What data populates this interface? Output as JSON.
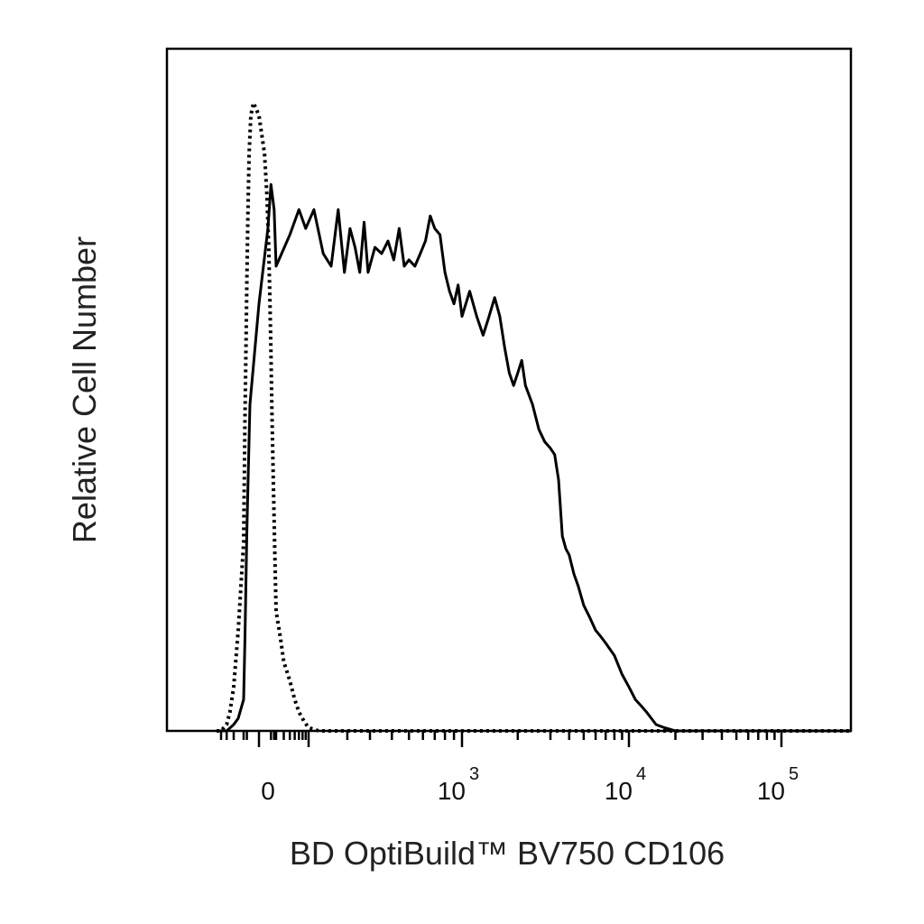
{
  "chart_data": {
    "type": "line",
    "xlabel": "BD OptiBuild™ BV750 CD106",
    "ylabel": "Relative Cell Number",
    "x_scale": "biexponential",
    "xlim": [
      -60,
      200000
    ],
    "ylim": [
      0,
      100
    ],
    "grid": false,
    "legend": "none",
    "x_tick_labels": [
      {
        "value": 0,
        "base": "0",
        "exponent": ""
      },
      {
        "value": 1000,
        "base": "10",
        "exponent": "3"
      },
      {
        "value": 10000,
        "base": "10",
        "exponent": "4"
      },
      {
        "value": 100000,
        "base": "10",
        "exponent": "5"
      }
    ],
    "colors": {
      "line": "#000000",
      "frame": "#000000",
      "text": "#222222"
    },
    "series": [
      {
        "style": "solid",
        "x": [
          -60,
          -40,
          -30,
          -25,
          -20,
          -15,
          -10,
          -5,
          0,
          5,
          10,
          20,
          30,
          50,
          70,
          90,
          110,
          130,
          150,
          170,
          190,
          210,
          230,
          250,
          270,
          290,
          320,
          350,
          380,
          410,
          440,
          470,
          500,
          540,
          580,
          620,
          660,
          700,
          750,
          800,
          850,
          900,
          950,
          1000,
          1100,
          1200,
          1300,
          1400,
          1500,
          1600,
          1700,
          1800,
          1900,
          2000,
          2100,
          2200,
          2400,
          2600,
          2800,
          3000,
          3200,
          3400,
          3600,
          3800,
          4000,
          4300,
          4600,
          5000,
          5500,
          6000,
          6500,
          7000,
          8000,
          9000,
          10000,
          11000,
          12000,
          13000,
          15000,
          17000,
          20000,
          23000,
          27000,
          32000,
          40000,
          55000,
          80000,
          120000,
          200000
        ],
        "y": [
          0,
          0,
          1,
          2,
          5,
          15,
          32,
          52,
          68,
          80,
          87,
          83,
          74,
          79,
          83,
          80,
          83,
          76,
          74,
          83,
          73,
          80,
          77,
          73,
          81,
          73,
          77,
          76,
          78,
          75,
          80,
          74,
          75,
          74,
          76,
          78,
          82,
          80,
          79,
          73,
          70,
          68,
          71,
          66,
          70,
          66,
          63,
          66,
          69,
          66,
          61,
          57,
          55,
          57,
          59,
          55,
          52,
          48,
          46,
          45,
          44,
          40,
          31,
          29,
          28,
          25,
          23,
          20,
          18,
          16,
          15,
          14,
          12,
          9,
          7,
          5,
          4,
          3,
          1,
          0.5,
          0,
          0,
          0,
          0,
          0,
          0,
          0,
          0,
          0
        ]
      },
      {
        "style": "dotted",
        "x": [
          -60,
          -50,
          -40,
          -35,
          -30,
          -25,
          -20,
          -15,
          -12,
          -10,
          -8,
          -6,
          -4,
          -2,
          0,
          2,
          4,
          6,
          8,
          10,
          12,
          15,
          18,
          22,
          26,
          30,
          35,
          40,
          50,
          60,
          70,
          85,
          100,
          120,
          140,
          170,
          200,
          250,
          300,
          400,
          500,
          1000,
          10000,
          200000
        ],
        "y": [
          0,
          0,
          1,
          3,
          7,
          16,
          30,
          50,
          62,
          72,
          82,
          92,
          98,
          100,
          98,
          92,
          85,
          77,
          68,
          60,
          52,
          44,
          37,
          30,
          24,
          19,
          15,
          11,
          8,
          5,
          3,
          1.5,
          0.5,
          0,
          0,
          0,
          0,
          0,
          0,
          0,
          0,
          0,
          0,
          0
        ]
      }
    ]
  }
}
